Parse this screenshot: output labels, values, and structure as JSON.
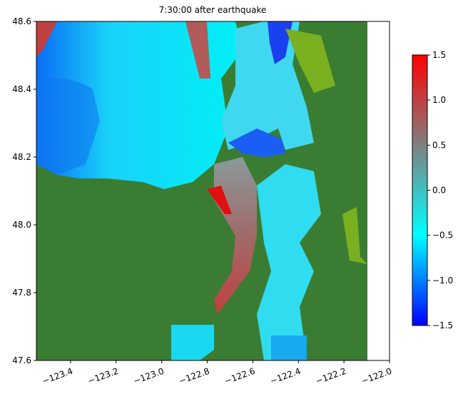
{
  "chart_data": {
    "type": "heatmap",
    "title": "7:30:00 after earthquake",
    "xlim": [
      -123.55,
      -122.0
    ],
    "xticks": [
      {
        "value": -123.4,
        "label": "−123.4"
      },
      {
        "value": -123.2,
        "label": "−123.2"
      },
      {
        "value": -123.0,
        "label": "−123.0"
      },
      {
        "value": -122.8,
        "label": "−122.8"
      },
      {
        "value": -122.6,
        "label": "−122.6"
      },
      {
        "value": -122.4,
        "label": "−122.4"
      },
      {
        "value": -122.2,
        "label": "−122.2"
      },
      {
        "value": -122.0,
        "label": "−122.0"
      }
    ],
    "ylim": [
      47.6,
      48.6
    ],
    "yticks": [
      47.6,
      47.8,
      {
        "value": 48.0,
        "label": "48.0"
      },
      48.2,
      48.4,
      48.6
    ],
    "colorbar": {
      "clim": [
        -1.5,
        1.5
      ],
      "ticks": [
        {
          "value": -1.5,
          "label": "−1.5"
        },
        {
          "value": -1.0,
          "label": "−1.0"
        },
        {
          "value": -0.5,
          "label": "−0.5"
        },
        {
          "value": 0.0,
          "label": "0.0"
        },
        0.5,
        {
          "value": 1.0,
          "label": "1.0"
        },
        1.5
      ],
      "colors": [
        "#0000ff",
        "#00ffff",
        "#808080",
        "#ff0000"
      ]
    }
  }
}
